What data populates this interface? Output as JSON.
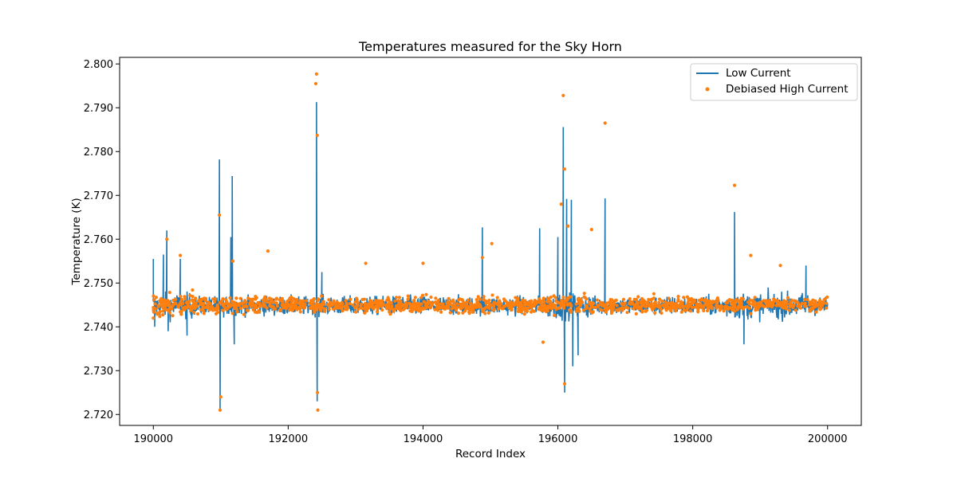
{
  "chart_data": {
    "type": "line+scatter",
    "title": "Temperatures measured for the Sky Horn",
    "xlabel": "Record Index",
    "ylabel": "Temperature (K)",
    "xlim": [
      189500,
      200500
    ],
    "ylim": [
      2.7175,
      2.8015
    ],
    "xticks": [
      190000,
      192000,
      194000,
      196000,
      198000,
      200000
    ],
    "yticks": [
      2.72,
      2.73,
      2.74,
      2.75,
      2.76,
      2.77,
      2.78,
      2.79,
      2.8
    ],
    "xtick_labels": [
      "190000",
      "192000",
      "194000",
      "196000",
      "198000",
      "200000"
    ],
    "ytick_labels": [
      "2.720",
      "2.730",
      "2.740",
      "2.750",
      "2.760",
      "2.770",
      "2.780",
      "2.790",
      "2.800"
    ],
    "grid": false,
    "legend": {
      "position": "top-right",
      "entries": [
        "Low Current",
        "Debiased High Current"
      ]
    },
    "colors": {
      "low_current": "#1f77b4",
      "high_current": "#ff7f0e"
    },
    "series": [
      {
        "name": "Low Current",
        "kind": "line",
        "baseline": 2.7448,
        "noise_amplitude": 0.0035,
        "x_range": [
          190000,
          200000
        ],
        "spikes": [
          {
            "x": 190000,
            "y": 2.7555
          },
          {
            "x": 190020,
            "y": 2.74
          },
          {
            "x": 190150,
            "y": 2.7565
          },
          {
            "x": 190200,
            "y": 2.762
          },
          {
            "x": 190220,
            "y": 2.739
          },
          {
            "x": 190400,
            "y": 2.7555
          },
          {
            "x": 190500,
            "y": 2.738
          },
          {
            "x": 190980,
            "y": 2.7782
          },
          {
            "x": 190990,
            "y": 2.721
          },
          {
            "x": 191150,
            "y": 2.7605
          },
          {
            "x": 191170,
            "y": 2.7744
          },
          {
            "x": 191200,
            "y": 2.736
          },
          {
            "x": 192420,
            "y": 2.7913
          },
          {
            "x": 192430,
            "y": 2.723
          },
          {
            "x": 192500,
            "y": 2.7525
          },
          {
            "x": 194880,
            "y": 2.7627
          },
          {
            "x": 195730,
            "y": 2.7625
          },
          {
            "x": 196000,
            "y": 2.7605
          },
          {
            "x": 196080,
            "y": 2.7856
          },
          {
            "x": 196100,
            "y": 2.725
          },
          {
            "x": 196130,
            "y": 2.7692
          },
          {
            "x": 196200,
            "y": 2.769
          },
          {
            "x": 196220,
            "y": 2.731
          },
          {
            "x": 196300,
            "y": 2.7335
          },
          {
            "x": 196700,
            "y": 2.7693
          },
          {
            "x": 198620,
            "y": 2.7662
          },
          {
            "x": 198760,
            "y": 2.736
          },
          {
            "x": 199680,
            "y": 2.754
          }
        ]
      },
      {
        "name": "Debiased High Current",
        "kind": "scatter",
        "baseline": 2.745,
        "noise_amplitude": 0.003,
        "x_range": [
          190000,
          200000
        ],
        "outliers": [
          {
            "x": 190000,
            "y": 2.742
          },
          {
            "x": 190200,
            "y": 2.76
          },
          {
            "x": 190400,
            "y": 2.7563
          },
          {
            "x": 190980,
            "y": 2.7655
          },
          {
            "x": 190990,
            "y": 2.721
          },
          {
            "x": 191000,
            "y": 2.724
          },
          {
            "x": 191180,
            "y": 2.755
          },
          {
            "x": 191700,
            "y": 2.7573
          },
          {
            "x": 192420,
            "y": 2.7977
          },
          {
            "x": 192410,
            "y": 2.7955
          },
          {
            "x": 192430,
            "y": 2.7837
          },
          {
            "x": 192440,
            "y": 2.721
          },
          {
            "x": 192435,
            "y": 2.725
          },
          {
            "x": 193150,
            "y": 2.7545
          },
          {
            "x": 194000,
            "y": 2.7545
          },
          {
            "x": 194880,
            "y": 2.7558
          },
          {
            "x": 195020,
            "y": 2.759
          },
          {
            "x": 196080,
            "y": 2.7928
          },
          {
            "x": 196100,
            "y": 2.776
          },
          {
            "x": 196050,
            "y": 2.768
          },
          {
            "x": 196150,
            "y": 2.763
          },
          {
            "x": 196100,
            "y": 2.727
          },
          {
            "x": 196500,
            "y": 2.7622
          },
          {
            "x": 196700,
            "y": 2.7865
          },
          {
            "x": 198620,
            "y": 2.7723
          },
          {
            "x": 198860,
            "y": 2.7563
          },
          {
            "x": 199300,
            "y": 2.754
          },
          {
            "x": 195780,
            "y": 2.7365
          }
        ]
      }
    ]
  }
}
